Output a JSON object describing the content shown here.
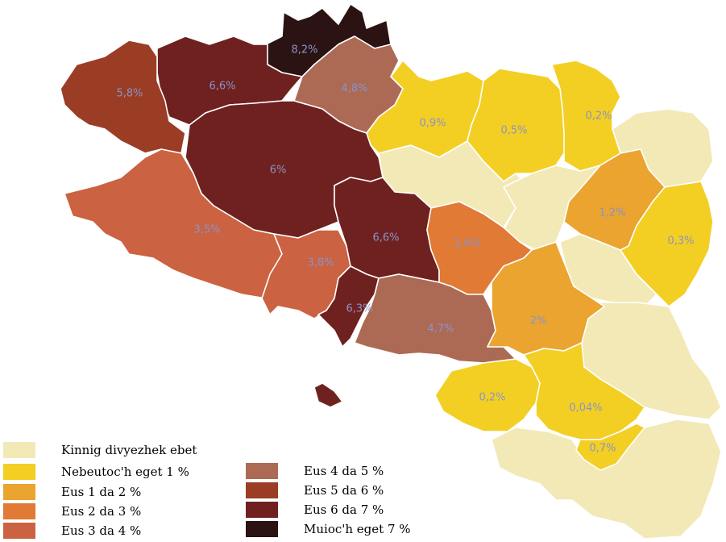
{
  "colors": {
    "none": "#f2e9b6",
    "lt1": "#f3cf24",
    "p1_2": "#eaa42f",
    "p2_3": "#e07a34",
    "p3_4": "#cb6242",
    "p4_5": "#ac6a55",
    "p5_6": "#9b3d25",
    "p6_7": "#6f2120",
    "gt7": "#2a1312",
    "label": "#8a93c6",
    "border": "#ffffff"
  },
  "regions": [
    {
      "id": "leon-ne",
      "value": "8,2%",
      "class": "gt7"
    },
    {
      "id": "leon-n",
      "value": "6,6%",
      "class": "p6_7"
    },
    {
      "id": "tregor",
      "value": "4,8%",
      "class": "p4_5"
    },
    {
      "id": "leon-nw",
      "value": "5,8%",
      "class": "p5_6"
    },
    {
      "id": "centre",
      "value": "6%",
      "class": "p6_7"
    },
    {
      "id": "cornouaille-w",
      "value": "3,5%",
      "class": "p3_4"
    },
    {
      "id": "cornouaille-s",
      "value": "3,8%",
      "class": "p3_4"
    },
    {
      "id": "centre-s",
      "value": "6,6%",
      "class": "p6_7"
    },
    {
      "id": "pontivy",
      "value": "2,6%",
      "class": "p2_3"
    },
    {
      "id": "lorient",
      "value": "6,3%",
      "class": "p6_7"
    },
    {
      "id": "vannes",
      "value": "4,7%",
      "class": "p4_5"
    },
    {
      "id": "ploermel",
      "value": "2%",
      "class": "p1_2"
    },
    {
      "id": "saint-brieuc",
      "value": "0,9%",
      "class": "lt1"
    },
    {
      "id": "lamballe",
      "value": "0,5%",
      "class": "lt1"
    },
    {
      "id": "dinan",
      "value": "0,2%",
      "class": "lt1"
    },
    {
      "id": "montfort",
      "value": "1,2%",
      "class": "p1_2"
    },
    {
      "id": "fougeres",
      "value": "0,3%",
      "class": "lt1"
    },
    {
      "id": "redon",
      "value": "0,2%",
      "class": "lt1"
    },
    {
      "id": "nantes-n",
      "value": "0,04%",
      "class": "lt1"
    },
    {
      "id": "nantes",
      "value": "0,7%",
      "class": "lt1"
    }
  ],
  "legend": [
    {
      "label": "Kinnig divyezhek ebet",
      "class": "none"
    },
    {
      "label": "Nebeutoc'h eget 1 %",
      "class": "lt1"
    },
    {
      "label": "Eus 1 da 2 %",
      "class": "p1_2"
    },
    {
      "label": "Eus 2 da 3 %",
      "class": "p2_3"
    },
    {
      "label": "Eus 3 da 4 %",
      "class": "p3_4"
    },
    {
      "label": "Eus 4 da 5 %",
      "class": "p4_5"
    },
    {
      "label": "Eus 5 da 6 %",
      "class": "p5_6"
    },
    {
      "label": "Eus 6 da 7 %",
      "class": "p6_7"
    },
    {
      "label": "Muioc'h eget 7 %",
      "class": "gt7"
    }
  ]
}
